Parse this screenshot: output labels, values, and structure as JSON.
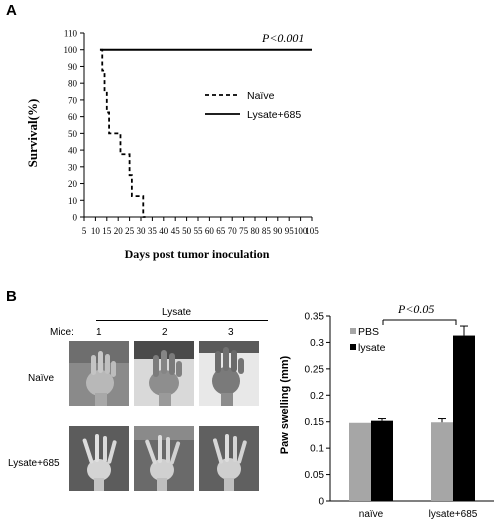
{
  "panels": {
    "a": "A",
    "b": "B"
  },
  "chart_data": [
    {
      "type": "line",
      "panel": "A",
      "xlabel": "Days post tumor inoculation",
      "ylabel": "Survival(%)",
      "xlim": [
        5,
        105
      ],
      "ylim": [
        0,
        110
      ],
      "xticks": [
        5,
        10,
        15,
        20,
        25,
        30,
        35,
        40,
        45,
        50,
        55,
        60,
        65,
        70,
        75,
        80,
        85,
        90,
        95,
        100,
        105
      ],
      "yticks": [
        0,
        10,
        20,
        30,
        40,
        50,
        60,
        70,
        80,
        90,
        100,
        110
      ],
      "annotation": "P<0.001",
      "legend_position": "right",
      "series": [
        {
          "name": "Naïve",
          "style": "dashed",
          "x": [
            12,
            13,
            13,
            14,
            14,
            15,
            15,
            16,
            16,
            21,
            21,
            25,
            25,
            26,
            26,
            27,
            27,
            31,
            31,
            32
          ],
          "y": [
            100,
            100,
            87.5,
            87.5,
            75,
            75,
            62.5,
            62.5,
            50,
            50,
            37.5,
            37.5,
            25,
            25,
            12.5,
            12.5,
            12.5,
            12.5,
            0,
            0
          ]
        },
        {
          "name": "Lysate+685",
          "style": "solid",
          "x": [
            12,
            105
          ],
          "y": [
            100,
            100
          ]
        }
      ]
    },
    {
      "type": "bar",
      "panel": "B",
      "ylabel": "Paw swelling (mm)",
      "ylim": [
        0,
        0.35
      ],
      "yticks": [
        "0",
        "0.05",
        "0.1",
        "0.15",
        "0.2",
        "0.25",
        "0.3",
        "0.35"
      ],
      "categories": [
        "naïve",
        "lysate+685"
      ],
      "annotation": "P<0.05",
      "legend_position": "top-left",
      "series": [
        {
          "name": "PBS",
          "color": "#a6a6a6",
          "values": [
            0.148,
            0.149
          ],
          "errors": [
            0.0,
            0.007
          ]
        },
        {
          "name": "lysate",
          "color": "#000000",
          "values": [
            0.152,
            0.313
          ],
          "errors": [
            0.004,
            0.018
          ]
        }
      ]
    }
  ],
  "photos": {
    "group_label": "Lysate",
    "mice_label": "Mice:",
    "columns": [
      "1",
      "2",
      "3"
    ],
    "rows": [
      "Naïve",
      "Lysate+685"
    ]
  }
}
